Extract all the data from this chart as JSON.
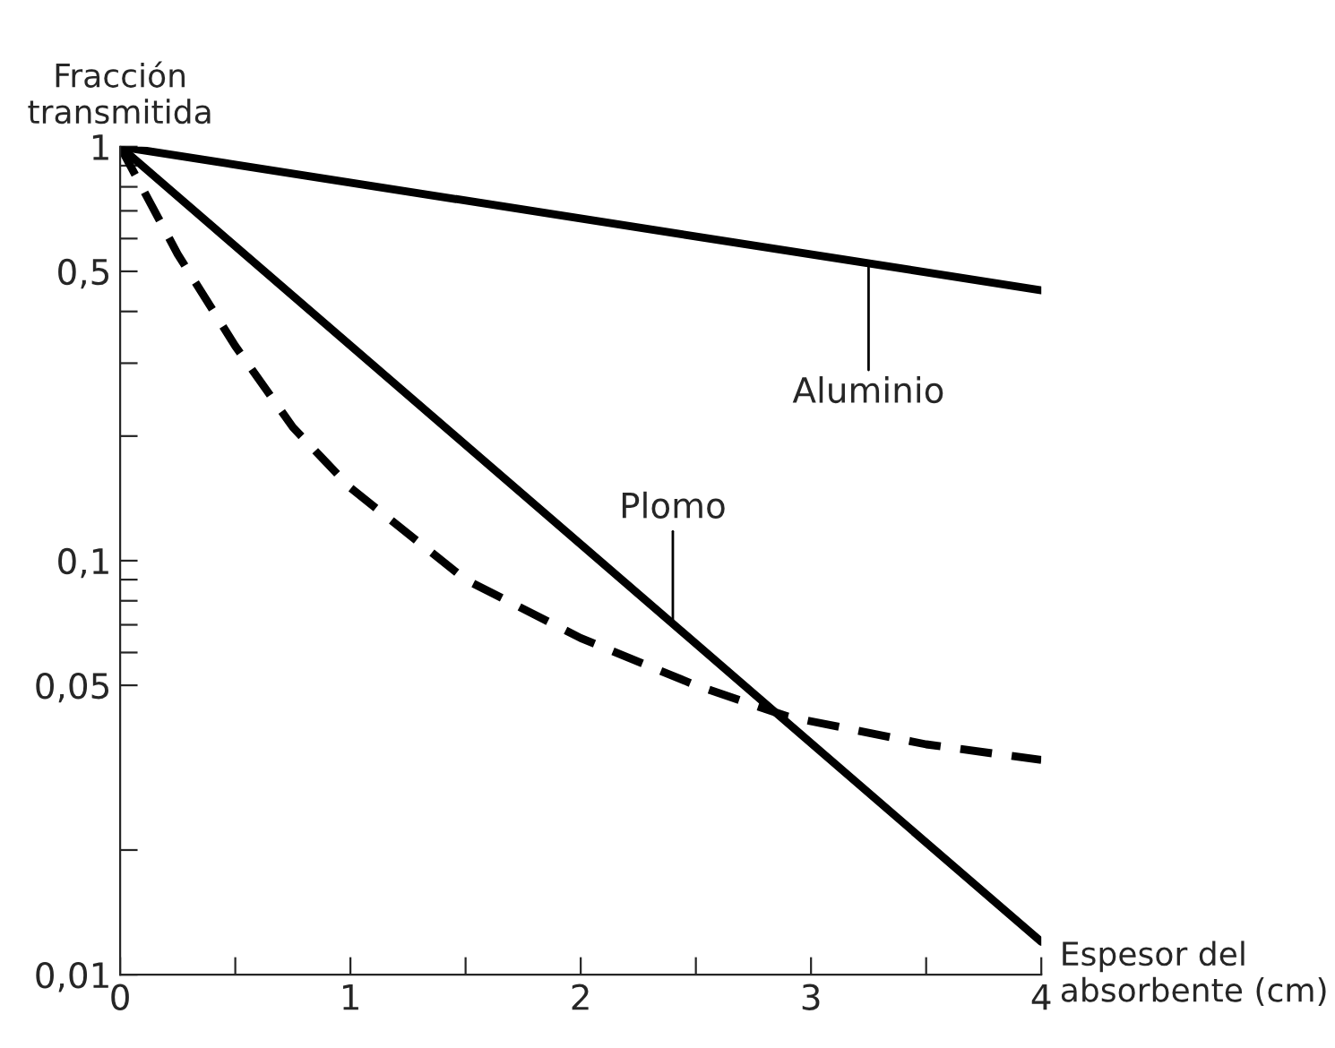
{
  "chart_data": {
    "type": "line",
    "xlabel": "Espesor del absorbente (cm)",
    "ylabel": "Fracción transmitida",
    "log": "y",
    "xlim": [
      0,
      4
    ],
    "ylim": [
      0.01,
      1
    ],
    "xticks": [
      0,
      {
        "value": 0.5,
        "label": null
      },
      1,
      {
        "value": 1.5,
        "label": null
      },
      2,
      {
        "value": 2.5,
        "label": null
      },
      3,
      {
        "value": 3.5,
        "label": null
      },
      4
    ],
    "yticks": [
      {
        "value": 0.01,
        "label": "0,01"
      },
      {
        "value": 0.02,
        "label": null
      },
      {
        "value": 0.05,
        "label": "0,05"
      },
      {
        "value": 0.06,
        "label": null
      },
      {
        "value": 0.07,
        "label": null
      },
      {
        "value": 0.08,
        "label": null
      },
      {
        "value": 0.09,
        "label": null
      },
      {
        "value": 0.1,
        "label": "0,1"
      },
      {
        "value": 0.2,
        "label": null
      },
      {
        "value": 0.3,
        "label": null
      },
      {
        "value": 0.4,
        "label": null
      },
      {
        "value": 0.5,
        "label": "0,5"
      },
      {
        "value": 0.6,
        "label": null
      },
      {
        "value": 0.7,
        "label": null
      },
      {
        "value": 0.8,
        "label": null
      },
      {
        "value": 0.9,
        "label": null
      },
      1
    ],
    "grid": false,
    "marker": "none",
    "series": [
      {
        "color": "#000000",
        "line_style": "solid",
        "x": [
          0,
          4
        ],
        "values": [
          1,
          0.45
        ]
      },
      {
        "color": "#000000",
        "line_style": "solid",
        "x": [
          0,
          4
        ],
        "values": [
          1,
          0.012
        ]
      },
      {
        "color": "#000000",
        "line_style": "dashed",
        "x": [
          0,
          0.25,
          0.5,
          0.75,
          1,
          1.5,
          2,
          2.5,
          2.9,
          3.5,
          4
        ],
        "values": [
          1,
          0.55,
          0.33,
          0.21,
          0.15,
          0.09,
          0.065,
          0.05,
          0.042,
          0.036,
          0.033
        ]
      }
    ],
    "annotations": [
      {
        "text": "Aluminio",
        "x": 3.25,
        "y": 0.52
      },
      {
        "text": "Plomo",
        "x": 2.4,
        "y": 0.07
      }
    ]
  }
}
